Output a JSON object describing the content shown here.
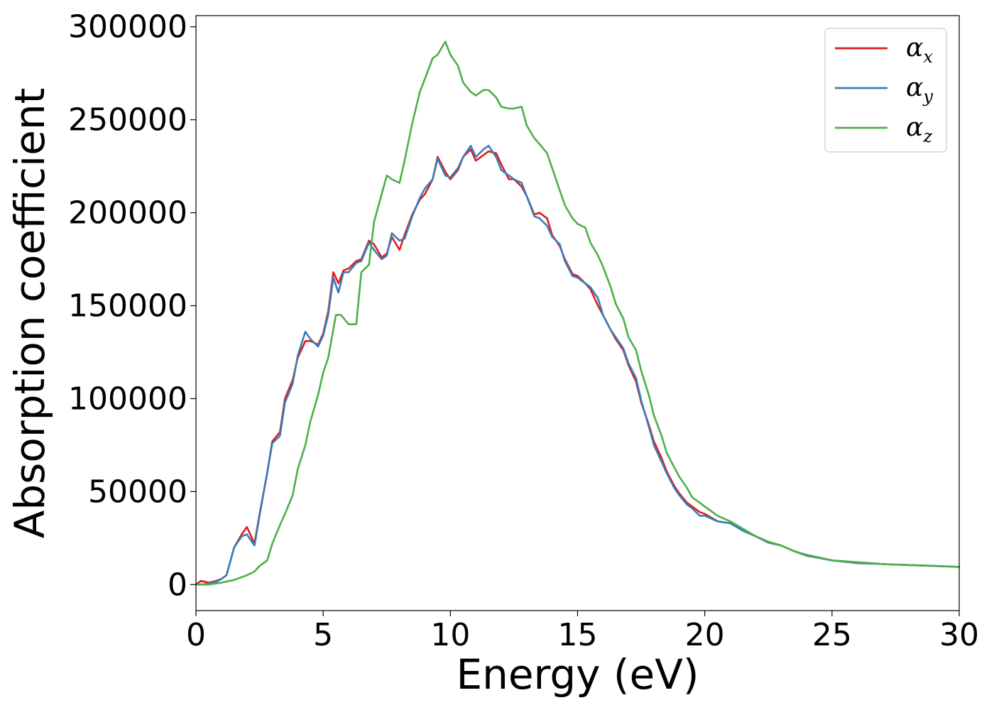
{
  "chart_data": {
    "type": "line",
    "title": "",
    "xlabel": "Energy (eV)",
    "ylabel": "Absorption coefficient",
    "xlim": [
      0,
      30
    ],
    "ylim": [
      -14000,
      306000
    ],
    "xticks": [
      0,
      5,
      10,
      15,
      20,
      25,
      30
    ],
    "yticks": [
      0,
      50000,
      100000,
      150000,
      200000,
      250000,
      300000
    ],
    "xtick_labels": [
      "0",
      "5",
      "10",
      "15",
      "20",
      "25",
      "30"
    ],
    "ytick_labels": [
      "0",
      "50000",
      "100000",
      "150000",
      "200000",
      "250000",
      "300000"
    ],
    "grid": false,
    "legend_position": "top-right",
    "series": [
      {
        "name": "αx",
        "legend_symbol": "α",
        "legend_subscript": "x",
        "color": "#e41a1c",
        "x": [
          0,
          0.2,
          0.5,
          0.8,
          1.0,
          1.2,
          1.5,
          1.8,
          2.0,
          2.3,
          2.5,
          2.8,
          3.0,
          3.3,
          3.5,
          3.8,
          4.0,
          4.3,
          4.5,
          4.8,
          5.0,
          5.2,
          5.4,
          5.6,
          5.8,
          6.0,
          6.3,
          6.5,
          6.8,
          7.0,
          7.3,
          7.5,
          7.7,
          8.0,
          8.2,
          8.5,
          8.8,
          9.0,
          9.3,
          9.5,
          9.8,
          10.0,
          10.3,
          10.5,
          10.8,
          11.0,
          11.3,
          11.5,
          11.8,
          12.0,
          12.3,
          12.5,
          12.8,
          13.0,
          13.3,
          13.5,
          13.8,
          14.0,
          14.3,
          14.5,
          14.8,
          15.0,
          15.3,
          15.5,
          15.8,
          16.0,
          16.3,
          16.5,
          16.8,
          17.0,
          17.3,
          17.5,
          17.8,
          18.0,
          18.3,
          18.5,
          18.8,
          19.0,
          19.3,
          19.5,
          19.8,
          20.0,
          20.5,
          21.0,
          21.5,
          22.0,
          22.5,
          23.0,
          23.5,
          24.0,
          25.0,
          26.0,
          27.0,
          28.0,
          29.0,
          30.0
        ],
        "y": [
          0,
          2000,
          1000,
          2000,
          3000,
          5000,
          20000,
          27000,
          31000,
          22000,
          38000,
          60000,
          77000,
          82000,
          100000,
          110000,
          122000,
          131000,
          131000,
          129000,
          135000,
          147000,
          168000,
          162000,
          169000,
          170000,
          174000,
          175000,
          185000,
          183000,
          176000,
          178000,
          187000,
          180000,
          188000,
          199000,
          207000,
          210000,
          218000,
          230000,
          222000,
          218000,
          223000,
          230000,
          234000,
          228000,
          231000,
          233000,
          232000,
          226000,
          218000,
          218000,
          214000,
          209000,
          199000,
          200000,
          197000,
          188000,
          182000,
          175000,
          167000,
          166000,
          162000,
          159000,
          150000,
          145000,
          137000,
          132000,
          126000,
          118000,
          109000,
          98000,
          86000,
          77000,
          68000,
          61000,
          53000,
          49000,
          44000,
          42000,
          39000,
          38000,
          34000,
          33000,
          29000,
          26000,
          23000,
          21000,
          18000,
          16000,
          13000,
          12000,
          11000,
          10500,
          10000,
          9500
        ]
      },
      {
        "name": "αy",
        "legend_symbol": "α",
        "legend_subscript": "y",
        "color": "#377eb8",
        "x": [
          0,
          0.2,
          0.5,
          0.8,
          1.0,
          1.2,
          1.5,
          1.8,
          2.0,
          2.3,
          2.5,
          2.8,
          3.0,
          3.3,
          3.5,
          3.8,
          4.0,
          4.3,
          4.5,
          4.8,
          5.0,
          5.2,
          5.4,
          5.6,
          5.8,
          6.0,
          6.3,
          6.5,
          6.8,
          7.0,
          7.3,
          7.5,
          7.7,
          8.0,
          8.2,
          8.5,
          8.8,
          9.0,
          9.3,
          9.5,
          9.8,
          10.0,
          10.3,
          10.5,
          10.8,
          11.0,
          11.3,
          11.5,
          11.8,
          12.0,
          12.3,
          12.5,
          12.8,
          13.0,
          13.3,
          13.5,
          13.8,
          14.0,
          14.3,
          14.5,
          14.8,
          15.0,
          15.3,
          15.5,
          15.8,
          16.0,
          16.3,
          16.5,
          16.8,
          17.0,
          17.3,
          17.5,
          17.8,
          18.0,
          18.3,
          18.5,
          18.8,
          19.0,
          19.3,
          19.5,
          19.8,
          20.0,
          20.5,
          21.0,
          21.5,
          22.0,
          22.5,
          23.0,
          23.5,
          24.0,
          25.0,
          26.0,
          27.0,
          28.0,
          29.0,
          30.0
        ],
        "y": [
          0,
          0,
          500,
          1500,
          3000,
          5000,
          20000,
          26000,
          27000,
          21000,
          37000,
          60000,
          76000,
          80000,
          98000,
          108000,
          123000,
          136000,
          132000,
          128000,
          134000,
          145000,
          165000,
          157000,
          168000,
          168000,
          173000,
          174000,
          184000,
          180000,
          175000,
          177000,
          189000,
          185000,
          186000,
          198000,
          208000,
          213000,
          218000,
          229000,
          220000,
          219000,
          224000,
          230000,
          236000,
          230000,
          234000,
          236000,
          230000,
          223000,
          220000,
          218000,
          216000,
          209000,
          198000,
          197000,
          193000,
          187000,
          183000,
          174000,
          166000,
          165000,
          162000,
          160000,
          154000,
          145000,
          137000,
          133000,
          127000,
          119000,
          111000,
          99000,
          85000,
          75000,
          66000,
          60000,
          52000,
          48000,
          43000,
          41000,
          37000,
          37000,
          34000,
          33000,
          29000,
          26000,
          22500,
          21000,
          18000,
          15500,
          13000,
          11500,
          11000,
          10500,
          10000,
          9500
        ]
      },
      {
        "name": "αz",
        "legend_symbol": "α",
        "legend_subscript": "z",
        "color": "#4daf4a",
        "x": [
          0,
          0.5,
          1.0,
          1.5,
          2.0,
          2.3,
          2.5,
          2.8,
          3.0,
          3.3,
          3.5,
          3.8,
          4.0,
          4.3,
          4.5,
          4.8,
          5.0,
          5.2,
          5.5,
          5.7,
          6.0,
          6.3,
          6.5,
          6.8,
          7.0,
          7.3,
          7.5,
          7.7,
          8.0,
          8.2,
          8.5,
          8.8,
          9.0,
          9.3,
          9.5,
          9.8,
          10.0,
          10.3,
          10.5,
          10.8,
          11.0,
          11.3,
          11.5,
          11.8,
          12.0,
          12.3,
          12.5,
          12.8,
          13.0,
          13.3,
          13.5,
          13.8,
          14.0,
          14.3,
          14.5,
          14.8,
          15.0,
          15.3,
          15.5,
          15.8,
          16.0,
          16.3,
          16.5,
          16.8,
          17.0,
          17.3,
          17.5,
          17.8,
          18.0,
          18.3,
          18.5,
          18.8,
          19.0,
          19.3,
          19.5,
          19.8,
          20.0,
          20.5,
          21.0,
          21.5,
          22.0,
          22.5,
          23.0,
          23.5,
          24.0,
          25.0,
          26.0,
          27.0,
          28.0,
          29.0,
          30.0
        ],
        "y": [
          0,
          0,
          1000,
          2500,
          5000,
          7000,
          10000,
          13000,
          22000,
          32000,
          38000,
          48000,
          62000,
          75000,
          88000,
          102000,
          114000,
          122000,
          145000,
          145000,
          140000,
          140000,
          168000,
          172000,
          195000,
          210000,
          220000,
          218000,
          216000,
          228000,
          248000,
          265000,
          272000,
          283000,
          285000,
          292000,
          285000,
          279000,
          270000,
          265000,
          263000,
          266000,
          266000,
          262000,
          257000,
          256000,
          256000,
          257000,
          247000,
          240000,
          237000,
          232000,
          224000,
          212000,
          204000,
          197000,
          194000,
          192000,
          184000,
          177000,
          171000,
          160000,
          151000,
          143000,
          133000,
          126000,
          115000,
          102000,
          91000,
          80000,
          71000,
          63000,
          58000,
          52000,
          47000,
          44000,
          42000,
          37000,
          34000,
          30000,
          26000,
          23000,
          21000,
          18000,
          16000,
          13000,
          12000,
          11000,
          10500,
          10000,
          9500
        ]
      }
    ]
  }
}
